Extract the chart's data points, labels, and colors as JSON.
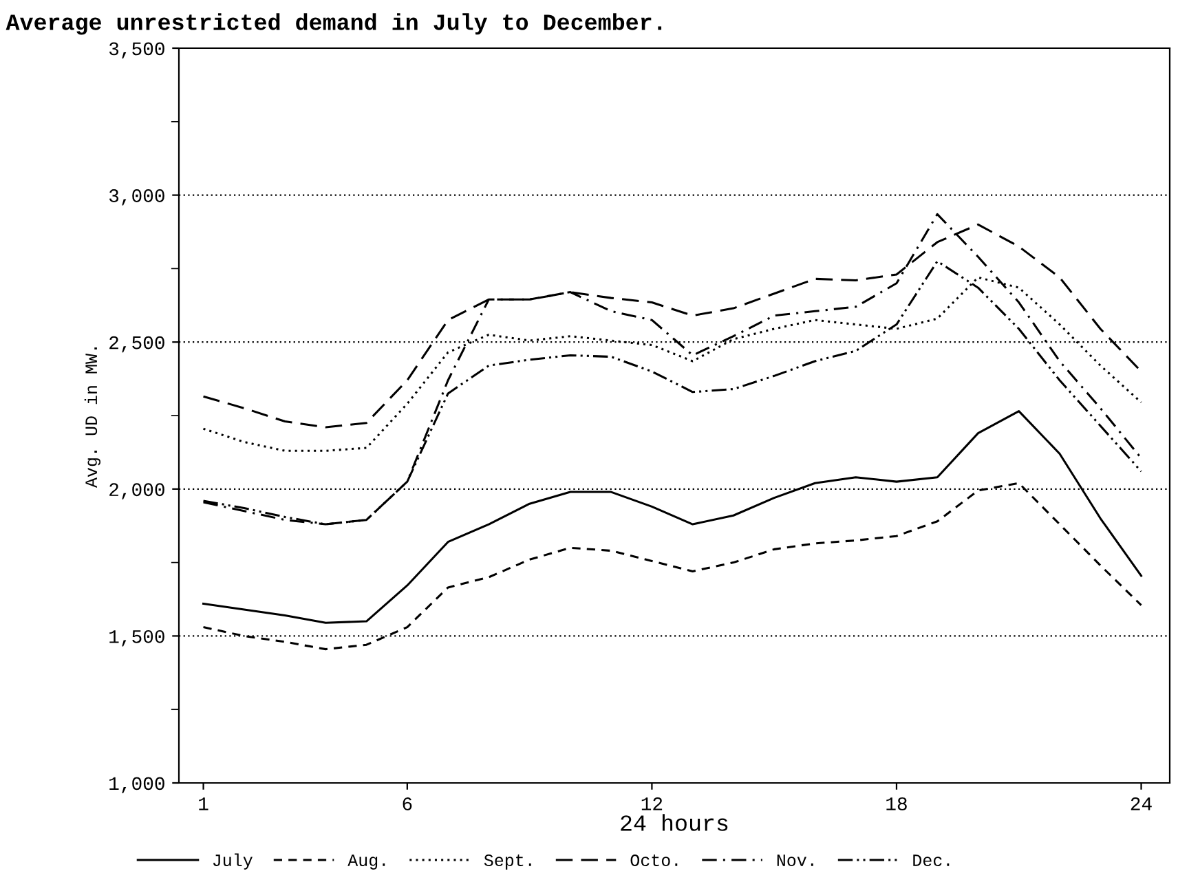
{
  "chart_data": {
    "type": "line",
    "title": "Average unrestricted demand in July to December.",
    "xlabel": "24 hours",
    "ylabel": "Avg. UD in MW.",
    "x": [
      1,
      2,
      3,
      4,
      5,
      6,
      7,
      8,
      9,
      10,
      11,
      12,
      13,
      14,
      15,
      16,
      17,
      18,
      19,
      20,
      21,
      22,
      23,
      24
    ],
    "xlim": [
      0.4,
      24.7
    ],
    "xticks": [
      1,
      6,
      12,
      18,
      24
    ],
    "ylim": [
      1000,
      3500
    ],
    "yticks": [
      {
        "value": 1000,
        "label": "1,000"
      },
      {
        "value": 1250,
        "label": null
      },
      {
        "value": 1500,
        "label": "1,500"
      },
      {
        "value": 1750,
        "label": null
      },
      {
        "value": 2000,
        "label": "2,000"
      },
      {
        "value": 2250,
        "label": null
      },
      {
        "value": 2500,
        "label": "2,500"
      },
      {
        "value": 2750,
        "label": null
      },
      {
        "value": 3000,
        "label": "3,000"
      },
      {
        "value": 3250,
        "label": null
      },
      {
        "value": 3500,
        "label": "3,500"
      }
    ],
    "grid": "y",
    "legend": "bottom",
    "marker": "none",
    "series": [
      {
        "name": "July",
        "color": "#000000",
        "line_style": "solid",
        "values": [
          1610,
          1590,
          1570,
          1545,
          1550,
          1672,
          1820,
          1880,
          1950,
          1990,
          1990,
          1940,
          1880,
          1910,
          1970,
          2020,
          2040,
          2025,
          2040,
          2190,
          2265,
          2120,
          1900,
          1705
        ]
      },
      {
        "name": "Aug.",
        "color": "#000000",
        "line_style": "dashed",
        "values": [
          1530,
          1500,
          1480,
          1455,
          1470,
          1530,
          1665,
          1700,
          1760,
          1800,
          1790,
          1755,
          1720,
          1750,
          1795,
          1815,
          1825,
          1840,
          1890,
          1995,
          2020,
          1880,
          1740,
          1605
        ]
      },
      {
        "name": "Sept.",
        "color": "#000000",
        "line_style": "dotted",
        "values": [
          2205,
          2160,
          2130,
          2130,
          2140,
          2290,
          2465,
          2525,
          2505,
          2520,
          2505,
          2490,
          2435,
          2510,
          2545,
          2575,
          2560,
          2545,
          2580,
          2720,
          2685,
          2560,
          2420,
          2295
        ]
      },
      {
        "name": "Octo.",
        "color": "#000000",
        "line_style": "longdash",
        "values": [
          2315,
          2275,
          2230,
          2210,
          2225,
          2370,
          2575,
          2645,
          2645,
          2670,
          2650,
          2635,
          2590,
          2615,
          2665,
          2715,
          2710,
          2730,
          2840,
          2900,
          2825,
          2720,
          2545,
          2400
        ]
      },
      {
        "name": "Nov.",
        "color": "#000000",
        "line_style": "dashdot",
        "values": [
          1955,
          1925,
          1895,
          1880,
          1895,
          2025,
          2370,
          2645,
          2645,
          2670,
          2605,
          2575,
          2455,
          2520,
          2590,
          2605,
          2620,
          2700,
          2935,
          2790,
          2635,
          2435,
          2275,
          2105
        ]
      },
      {
        "name": "Dec.",
        "color": "#000000",
        "line_style": "dashdotdot",
        "values": [
          1960,
          1935,
          1905,
          1880,
          1895,
          2025,
          2325,
          2420,
          2440,
          2455,
          2450,
          2400,
          2330,
          2340,
          2385,
          2435,
          2470,
          2560,
          2775,
          2685,
          2545,
          2370,
          2215,
          2060
        ]
      }
    ]
  }
}
